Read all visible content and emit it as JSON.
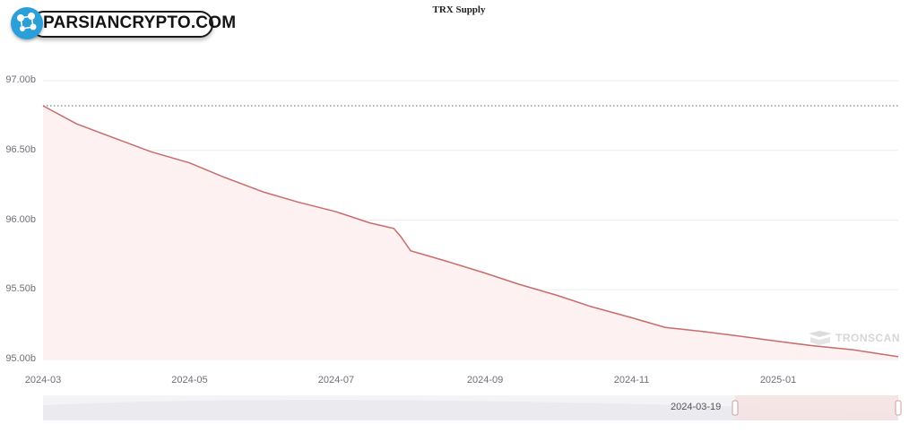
{
  "logo": {
    "text": "PARSIANCRYPTO.COM"
  },
  "watermark": {
    "text": "TRONSCAN"
  },
  "zoom": {
    "start_label": "2024-03-19"
  },
  "colors": {
    "line": "#c96b6b",
    "area": "#fdf1f1",
    "grid": "#eeeeee",
    "ref_line": "#666666"
  },
  "chart_data": {
    "type": "area",
    "title": "TRX Supply",
    "xlabel": "",
    "ylabel": "",
    "x_tick_labels": [
      "2024-03",
      "2024-05",
      "2024-07",
      "2024-09",
      "2024-11",
      "2025-01"
    ],
    "y_tick_labels": [
      "95.00b",
      "95.50b",
      "96.00b",
      "96.50b",
      "97.00b"
    ],
    "ylim": [
      95.0,
      97.0
    ],
    "xlim": [
      "2024-03-01",
      "2025-02-20"
    ],
    "reference_line": 96.82,
    "grid": true,
    "series": [
      {
        "x": [
          "2024-03-01",
          "2024-03-15",
          "2024-04-01",
          "2024-04-15",
          "2024-05-01",
          "2024-05-15",
          "2024-06-01",
          "2024-06-15",
          "2024-07-01",
          "2024-07-15",
          "2024-07-25",
          "2024-07-28",
          "2024-08-01",
          "2024-08-15",
          "2024-09-01",
          "2024-09-15",
          "2024-10-01",
          "2024-10-15",
          "2024-11-01",
          "2024-11-15",
          "2024-12-01",
          "2024-12-15",
          "2025-01-01",
          "2025-01-15",
          "2025-02-01",
          "2025-02-20"
        ],
        "values": [
          96.82,
          96.69,
          96.58,
          96.49,
          96.41,
          96.31,
          96.2,
          96.13,
          96.06,
          95.98,
          95.94,
          95.88,
          95.78,
          95.71,
          95.62,
          95.54,
          95.46,
          95.38,
          95.3,
          95.23,
          95.2,
          95.17,
          95.13,
          95.1,
          95.07,
          95.02
        ]
      }
    ]
  }
}
